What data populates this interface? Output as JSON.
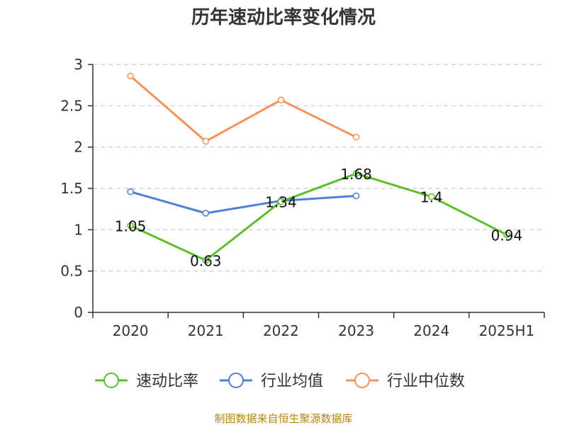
{
  "title": "历年速动比率变化情况",
  "source": "制图数据来自恒生聚源数据库",
  "colors": {
    "grid": "#cccccc",
    "axis": "#333333"
  },
  "chart_data": {
    "type": "line",
    "categories": [
      "2020",
      "2021",
      "2022",
      "2023",
      "2024",
      "2025H1"
    ],
    "ylim": [
      0,
      3
    ],
    "yticks": [
      "0",
      "0.5",
      "1",
      "1.5",
      "2",
      "2.5",
      "3"
    ],
    "grid": true,
    "legend_position": "bottom",
    "series": [
      {
        "name": "速动比率",
        "color": "#5cbf27",
        "values": [
          1.05,
          0.63,
          1.34,
          1.68,
          1.4,
          0.94
        ],
        "labels": [
          "1.05",
          "0.63",
          "1.34",
          "1.68",
          "1.4",
          "0.94"
        ]
      },
      {
        "name": "行业均值",
        "color": "#4f7fd9",
        "values": [
          1.46,
          1.2,
          1.35,
          1.41,
          null,
          null
        ]
      },
      {
        "name": "行业中位数",
        "color": "#f5935a",
        "values": [
          2.86,
          2.07,
          2.57,
          2.12,
          null,
          null
        ]
      }
    ]
  }
}
